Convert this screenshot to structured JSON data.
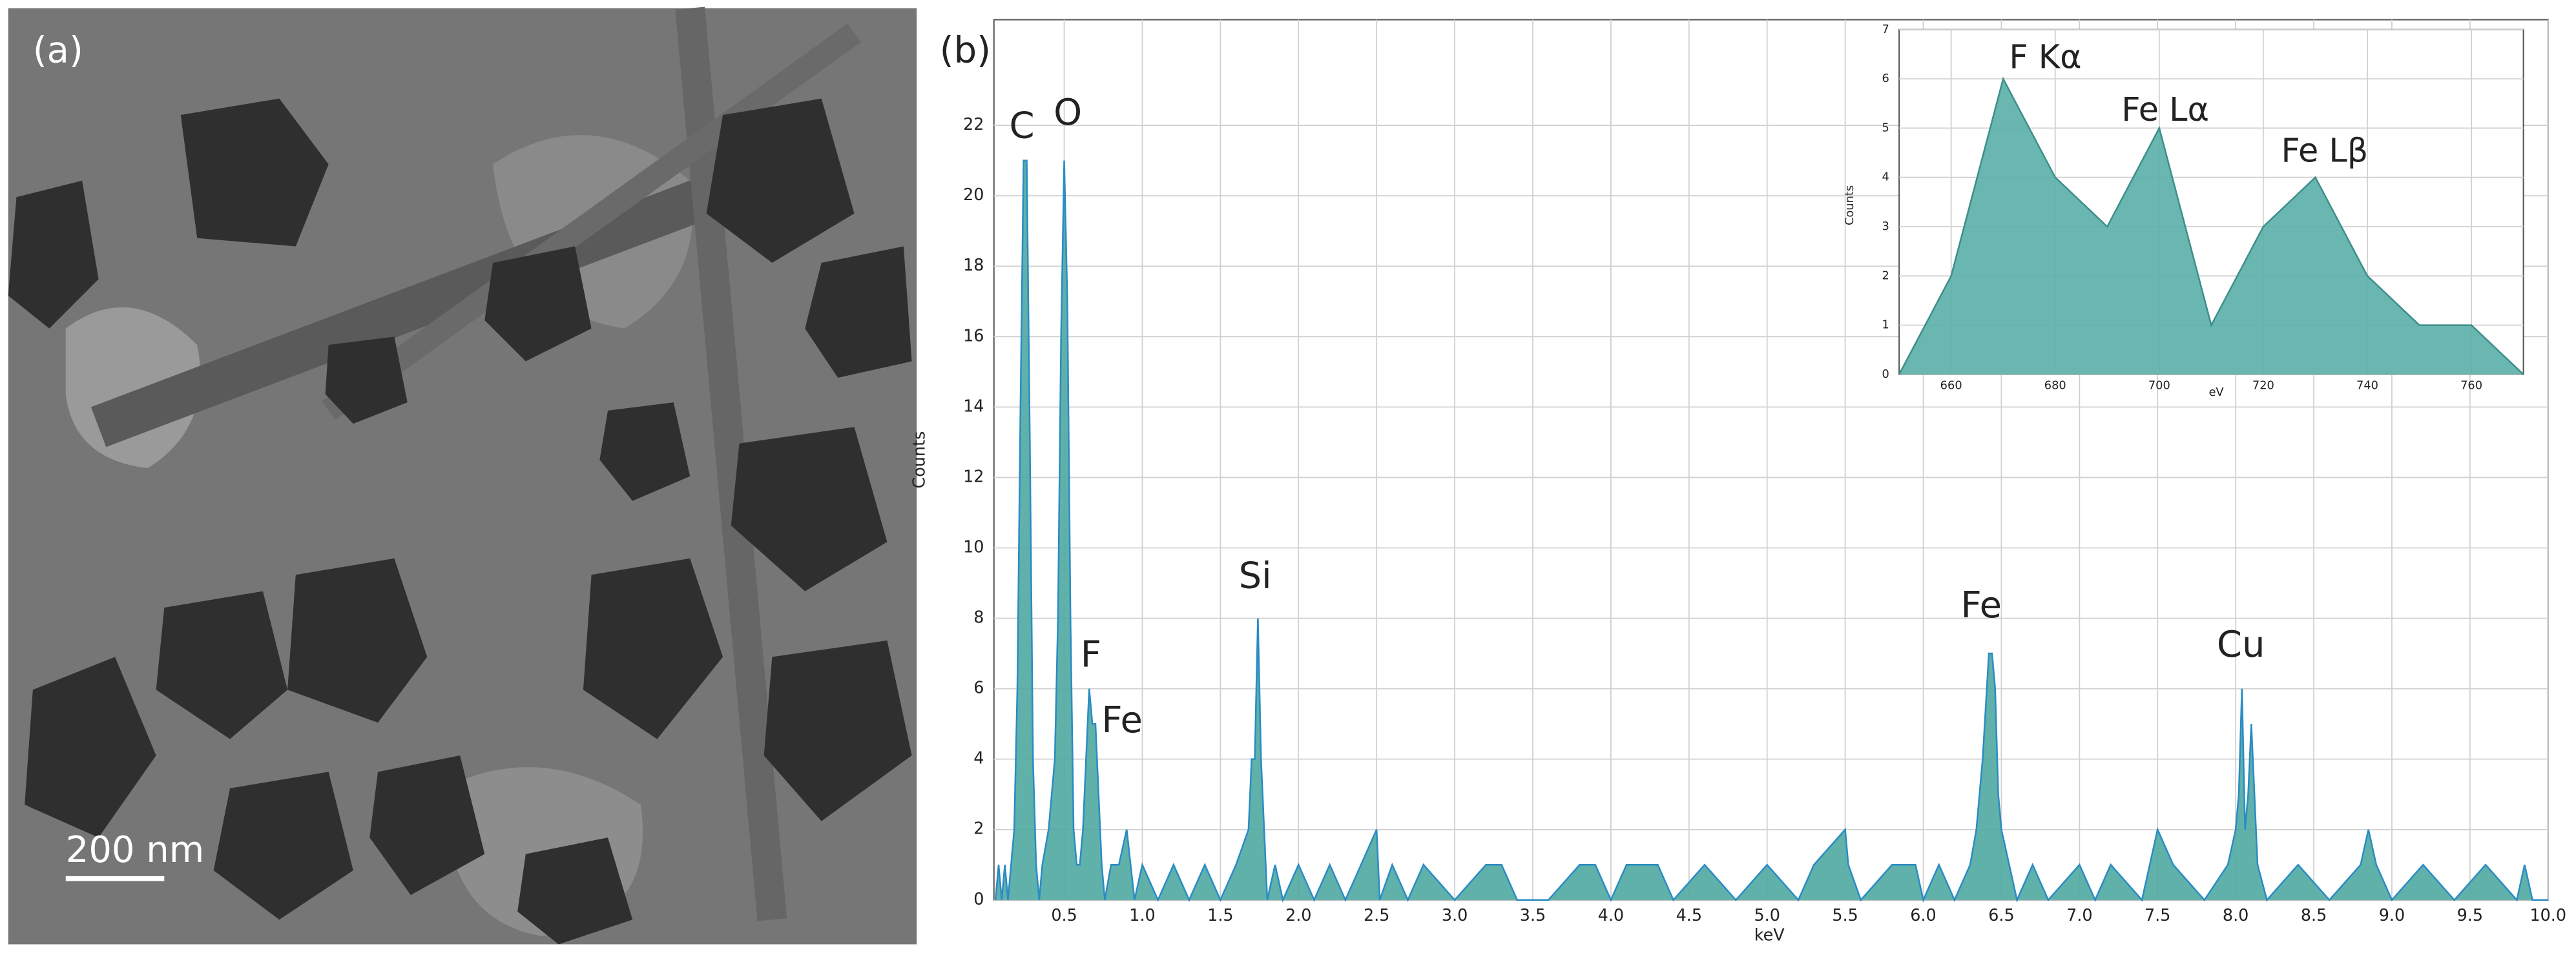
{
  "panels": {
    "a": {
      "label": "(a)",
      "scale_bar": "200 nm"
    },
    "b": {
      "label": "(b)"
    }
  },
  "chart_data": [
    {
      "type": "area",
      "x_label": "keV",
      "y_label": "Counts",
      "x": [
        0.06,
        0.08,
        0.1,
        0.12,
        0.14,
        0.16,
        0.18,
        0.2,
        0.22,
        0.24,
        0.26,
        0.28,
        0.3,
        0.32,
        0.34,
        0.36,
        0.4,
        0.44,
        0.46,
        0.48,
        0.5,
        0.52,
        0.54,
        0.56,
        0.58,
        0.6,
        0.62,
        0.64,
        0.66,
        0.68,
        0.7,
        0.72,
        0.74,
        0.76,
        0.8,
        0.85,
        0.9,
        0.95,
        1.0,
        1.1,
        1.2,
        1.3,
        1.4,
        1.5,
        1.6,
        1.68,
        1.7,
        1.72,
        1.74,
        1.76,
        1.78,
        1.8,
        1.85,
        1.9,
        2.0,
        2.1,
        2.2,
        2.3,
        2.4,
        2.5,
        2.52,
        2.6,
        2.7,
        2.8,
        3.0,
        3.2,
        3.3,
        3.4,
        3.6,
        3.8,
        3.9,
        4.0,
        4.1,
        4.3,
        4.4,
        4.6,
        4.8,
        5.0,
        5.2,
        5.3,
        5.5,
        5.52,
        5.6,
        5.8,
        5.95,
        6.0,
        6.1,
        6.2,
        6.3,
        6.34,
        6.38,
        6.42,
        6.44,
        6.46,
        6.48,
        6.5,
        6.55,
        6.6,
        6.7,
        6.8,
        7.0,
        7.1,
        7.2,
        7.4,
        7.5,
        7.6,
        7.8,
        7.95,
        8.0,
        8.02,
        8.04,
        8.06,
        8.08,
        8.1,
        8.14,
        8.2,
        8.4,
        8.6,
        8.8,
        8.85,
        8.9,
        9.0,
        9.2,
        9.4,
        9.6,
        9.8,
        9.85,
        9.9,
        10.0
      ],
      "series": [
        {
          "color": "#2b8cc4",
          "fill": "#4fa8a0",
          "values": [
            0,
            1,
            0,
            1,
            0,
            1,
            2,
            6,
            14,
            21,
            21,
            13,
            4,
            1,
            0,
            1,
            2,
            4,
            8,
            16,
            21,
            17,
            8,
            2,
            1,
            1,
            2,
            4,
            6,
            5,
            5,
            3,
            1,
            0,
            1,
            1,
            2,
            0,
            1,
            0,
            1,
            0,
            1,
            0,
            1,
            2,
            4,
            4,
            8,
            4,
            2,
            0,
            1,
            0,
            1,
            0,
            1,
            0,
            1,
            2,
            0,
            1,
            0,
            1,
            0,
            1,
            1,
            0,
            0,
            1,
            1,
            0,
            1,
            1,
            0,
            1,
            0,
            1,
            0,
            1,
            2,
            1,
            0,
            1,
            1,
            0,
            1,
            0,
            1,
            2,
            4,
            7,
            7,
            6,
            3,
            2,
            1,
            0,
            1,
            0,
            1,
            0,
            1,
            0,
            2,
            1,
            0,
            1,
            2,
            3,
            6,
            2,
            3,
            5,
            1,
            0,
            1,
            0,
            1,
            2,
            1,
            0,
            1,
            0,
            1,
            0,
            1,
            0,
            0
          ]
        }
      ],
      "annotations": [
        "C",
        "O",
        "F",
        "Fe",
        "Si",
        "Fe",
        "Cu"
      ],
      "xlim": [
        0.05,
        10
      ],
      "ylim": [
        0,
        25
      ],
      "xticks": [
        0.5,
        {
          "value": 1,
          "label": "1.0"
        },
        1.5,
        {
          "value": 2,
          "label": "2.0"
        },
        2.5,
        {
          "value": 3,
          "label": "3.0"
        },
        3.5,
        {
          "value": 4,
          "label": "4.0"
        },
        4.5,
        {
          "value": 5,
          "label": "5.0"
        },
        5.5,
        {
          "value": 6,
          "label": "6.0"
        },
        6.5,
        {
          "value": 7,
          "label": "7.0"
        },
        7.5,
        {
          "value": 8,
          "label": "8.0"
        },
        8.5,
        {
          "value": 9,
          "label": "9.0"
        },
        9.5,
        {
          "value": 10,
          "label": "10.0"
        }
      ],
      "yticks": [
        0,
        2,
        4,
        6,
        8,
        10,
        12,
        14,
        16,
        18,
        20,
        22
      ],
      "grid": true
    },
    {
      "type": "area",
      "x_label": "eV",
      "y_label": "Counts",
      "x": [
        650,
        660,
        670,
        680,
        690,
        700,
        710,
        720,
        730,
        740,
        750,
        760,
        770
      ],
      "series": [
        {
          "color": "#3d8f8a",
          "fill": "#5aaea8",
          "values": [
            0,
            2,
            6,
            4,
            3,
            5,
            1,
            3,
            4,
            2,
            1,
            1,
            0
          ]
        }
      ],
      "annotations": [
        "F Kα",
        "Fe Lα",
        "Fe Lβ"
      ],
      "xlim": [
        650,
        770
      ],
      "ylim": [
        0,
        7
      ],
      "xticks": [
        660,
        680,
        700,
        720,
        740,
        760
      ],
      "yticks": [
        0,
        1,
        2,
        3,
        4,
        5,
        6,
        7
      ],
      "grid": true
    }
  ]
}
